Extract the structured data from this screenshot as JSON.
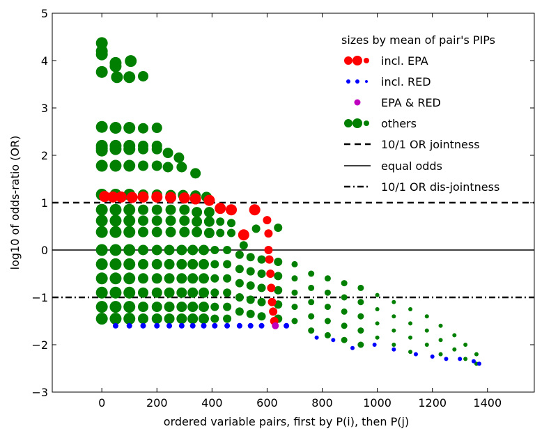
{
  "chart_data": {
    "type": "scatter",
    "xlabel": "ordered variable pairs, first by P(i), then P(j)",
    "ylabel": "log10 of odds-ratio (OR)",
    "xlim": [
      -180,
      1570
    ],
    "ylim": [
      -3,
      5
    ],
    "xticks": [
      0,
      200,
      400,
      600,
      800,
      1000,
      1200,
      1400
    ],
    "yticks": [
      -3,
      -2,
      -1,
      0,
      1,
      2,
      3,
      4,
      5
    ],
    "grid": false,
    "legend_position": "top-right",
    "legend_title": "sizes by mean of pair's PIPs",
    "colors": {
      "epa": "#ff0000",
      "red": "#0000ff",
      "both": "#bf00bf",
      "others": "#007f00"
    },
    "series": [
      {
        "name": "incl. EPA",
        "color": "#ff0000",
        "points": [
          [
            10,
            1.13
          ],
          [
            40,
            1.12
          ],
          [
            70,
            1.12
          ],
          [
            110,
            1.11
          ],
          [
            150,
            1.12
          ],
          [
            200,
            1.12
          ],
          [
            250,
            1.11
          ],
          [
            300,
            1.1
          ],
          [
            340,
            1.08
          ],
          [
            390,
            1.05
          ],
          [
            430,
            0.88
          ],
          [
            470,
            0.85
          ],
          [
            515,
            0.32
          ],
          [
            555,
            0.85
          ],
          [
            600,
            0.63
          ],
          [
            605,
            0.35
          ],
          [
            605,
            0.0
          ],
          [
            608,
            -0.2
          ],
          [
            612,
            -0.5
          ],
          [
            615,
            -0.8
          ],
          [
            618,
            -1.1
          ],
          [
            622,
            -1.3
          ],
          [
            626,
            -1.5
          ]
        ]
      },
      {
        "name": "incl. RED",
        "color": "#0000ff",
        "points": [
          [
            50,
            -1.6
          ],
          [
            100,
            -1.6
          ],
          [
            150,
            -1.6
          ],
          [
            200,
            -1.6
          ],
          [
            245,
            -1.6
          ],
          [
            290,
            -1.6
          ],
          [
            330,
            -1.6
          ],
          [
            370,
            -1.6
          ],
          [
            410,
            -1.6
          ],
          [
            455,
            -1.6
          ],
          [
            500,
            -1.6
          ],
          [
            540,
            -1.6
          ],
          [
            580,
            -1.6
          ],
          [
            670,
            -1.6
          ],
          [
            780,
            -1.85
          ],
          [
            840,
            -1.9
          ],
          [
            910,
            -2.07
          ],
          [
            990,
            -2.0
          ],
          [
            1060,
            -2.1
          ],
          [
            1140,
            -2.2
          ],
          [
            1200,
            -2.25
          ],
          [
            1250,
            -2.3
          ],
          [
            1300,
            -2.3
          ],
          [
            1350,
            -2.35
          ],
          [
            1370,
            -2.4
          ]
        ]
      },
      {
        "name": "EPA & RED",
        "color": "#bf00bf",
        "points": [
          [
            630,
            -1.6
          ]
        ]
      },
      {
        "name": "others",
        "color": "#007f00",
        "points": [
          [
            0,
            4.37
          ],
          [
            0,
            4.2
          ],
          [
            0,
            4.13
          ],
          [
            0,
            3.76
          ],
          [
            50,
            3.95
          ],
          [
            50,
            3.88
          ],
          [
            105,
            3.99
          ],
          [
            55,
            3.65
          ],
          [
            100,
            3.65
          ],
          [
            150,
            3.67
          ],
          [
            0,
            2.6
          ],
          [
            50,
            2.58
          ],
          [
            100,
            2.58
          ],
          [
            150,
            2.57
          ],
          [
            200,
            2.58
          ],
          [
            0,
            2.2
          ],
          [
            0,
            2.15
          ],
          [
            0,
            2.1
          ],
          [
            50,
            2.2
          ],
          [
            50,
            2.13
          ],
          [
            100,
            2.2
          ],
          [
            100,
            2.13
          ],
          [
            150,
            2.2
          ],
          [
            150,
            2.13
          ],
          [
            200,
            2.2
          ],
          [
            200,
            2.13
          ],
          [
            240,
            2.05
          ],
          [
            280,
            1.95
          ],
          [
            0,
            1.78
          ],
          [
            50,
            1.78
          ],
          [
            100,
            1.78
          ],
          [
            150,
            1.78
          ],
          [
            200,
            1.78
          ],
          [
            240,
            1.75
          ],
          [
            290,
            1.75
          ],
          [
            340,
            1.62
          ],
          [
            0,
            1.17
          ],
          [
            50,
            1.17
          ],
          [
            100,
            1.17
          ],
          [
            150,
            1.17
          ],
          [
            200,
            1.17
          ],
          [
            250,
            1.16
          ],
          [
            295,
            1.16
          ],
          [
            340,
            1.15
          ],
          [
            380,
            1.12
          ],
          [
            0,
            0.85
          ],
          [
            50,
            0.85
          ],
          [
            100,
            0.85
          ],
          [
            150,
            0.85
          ],
          [
            200,
            0.85
          ],
          [
            250,
            0.85
          ],
          [
            300,
            0.85
          ],
          [
            345,
            0.8
          ],
          [
            390,
            0.8
          ],
          [
            0,
            0.62
          ],
          [
            50,
            0.62
          ],
          [
            100,
            0.62
          ],
          [
            150,
            0.62
          ],
          [
            200,
            0.62
          ],
          [
            250,
            0.62
          ],
          [
            300,
            0.62
          ],
          [
            345,
            0.6
          ],
          [
            390,
            0.6
          ],
          [
            430,
            0.6
          ],
          [
            470,
            0.57
          ],
          [
            0,
            0.38
          ],
          [
            50,
            0.38
          ],
          [
            100,
            0.38
          ],
          [
            150,
            0.38
          ],
          [
            200,
            0.38
          ],
          [
            250,
            0.38
          ],
          [
            300,
            0.38
          ],
          [
            345,
            0.38
          ],
          [
            390,
            0.36
          ],
          [
            430,
            0.36
          ],
          [
            470,
            0.36
          ],
          [
            515,
            0.1
          ],
          [
            560,
            0.45
          ],
          [
            640,
            0.47
          ],
          [
            0,
            0.0
          ],
          [
            0,
            -0.3
          ],
          [
            0,
            -0.6
          ],
          [
            0,
            -0.9
          ],
          [
            0,
            -1.2
          ],
          [
            0,
            -1.45
          ],
          [
            50,
            0.0
          ],
          [
            50,
            -0.3
          ],
          [
            50,
            -0.6
          ],
          [
            50,
            -0.9
          ],
          [
            50,
            -1.2
          ],
          [
            50,
            -1.45
          ],
          [
            100,
            0.0
          ],
          [
            100,
            -0.3
          ],
          [
            100,
            -0.6
          ],
          [
            100,
            -0.9
          ],
          [
            100,
            -1.2
          ],
          [
            100,
            -1.45
          ],
          [
            150,
            0.0
          ],
          [
            150,
            -0.3
          ],
          [
            150,
            -0.6
          ],
          [
            150,
            -0.9
          ],
          [
            150,
            -1.2
          ],
          [
            150,
            -1.45
          ],
          [
            200,
            0.0
          ],
          [
            200,
            -0.3
          ],
          [
            200,
            -0.6
          ],
          [
            200,
            -0.9
          ],
          [
            200,
            -1.2
          ],
          [
            200,
            -1.45
          ],
          [
            245,
            0.0
          ],
          [
            245,
            -0.3
          ],
          [
            245,
            -0.6
          ],
          [
            245,
            -0.9
          ],
          [
            245,
            -1.2
          ],
          [
            245,
            -1.45
          ],
          [
            290,
            0.0
          ],
          [
            290,
            -0.3
          ],
          [
            290,
            -0.6
          ],
          [
            290,
            -0.9
          ],
          [
            290,
            -1.2
          ],
          [
            290,
            -1.45
          ],
          [
            330,
            0.0
          ],
          [
            330,
            -0.3
          ],
          [
            330,
            -0.6
          ],
          [
            330,
            -0.9
          ],
          [
            330,
            -1.2
          ],
          [
            330,
            -1.45
          ],
          [
            370,
            0.0
          ],
          [
            370,
            -0.3
          ],
          [
            370,
            -0.6
          ],
          [
            370,
            -0.9
          ],
          [
            370,
            -1.2
          ],
          [
            370,
            -1.45
          ],
          [
            410,
            0.0
          ],
          [
            410,
            -0.3
          ],
          [
            410,
            -0.6
          ],
          [
            410,
            -0.9
          ],
          [
            410,
            -1.2
          ],
          [
            410,
            -1.45
          ],
          [
            455,
            0.0
          ],
          [
            455,
            -0.3
          ],
          [
            455,
            -0.6
          ],
          [
            455,
            -0.9
          ],
          [
            455,
            -1.2
          ],
          [
            455,
            -1.45
          ],
          [
            500,
            -0.1
          ],
          [
            500,
            -0.4
          ],
          [
            500,
            -0.7
          ],
          [
            500,
            -1.0
          ],
          [
            500,
            -1.3
          ],
          [
            540,
            -0.15
          ],
          [
            540,
            -0.45
          ],
          [
            540,
            -0.75
          ],
          [
            540,
            -1.05
          ],
          [
            540,
            -1.35
          ],
          [
            580,
            -0.2
          ],
          [
            580,
            -0.5
          ],
          [
            580,
            -0.8
          ],
          [
            580,
            -1.1
          ],
          [
            580,
            -1.4
          ],
          [
            640,
            -0.25
          ],
          [
            640,
            -0.55
          ],
          [
            640,
            -0.85
          ],
          [
            640,
            -1.15
          ],
          [
            640,
            -1.45
          ],
          [
            700,
            -0.3
          ],
          [
            700,
            -0.6
          ],
          [
            700,
            -0.9
          ],
          [
            700,
            -1.2
          ],
          [
            700,
            -1.5
          ],
          [
            760,
            -0.5
          ],
          [
            760,
            -0.8
          ],
          [
            760,
            -1.1
          ],
          [
            760,
            -1.4
          ],
          [
            760,
            -1.7
          ],
          [
            820,
            -0.6
          ],
          [
            820,
            -0.9
          ],
          [
            820,
            -1.2
          ],
          [
            820,
            -1.5
          ],
          [
            820,
            -1.8
          ],
          [
            880,
            -0.7
          ],
          [
            880,
            -1.0
          ],
          [
            880,
            -1.3
          ],
          [
            880,
            -1.6
          ],
          [
            880,
            -1.9
          ],
          [
            940,
            -0.8
          ],
          [
            940,
            -1.1
          ],
          [
            940,
            -1.4
          ],
          [
            940,
            -1.7
          ],
          [
            940,
            -2.0
          ],
          [
            1000,
            -0.95
          ],
          [
            1000,
            -1.25
          ],
          [
            1000,
            -1.55
          ],
          [
            1000,
            -1.85
          ],
          [
            1060,
            -1.1
          ],
          [
            1060,
            -1.4
          ],
          [
            1060,
            -1.7
          ],
          [
            1060,
            -2.0
          ],
          [
            1120,
            -1.25
          ],
          [
            1120,
            -1.55
          ],
          [
            1120,
            -1.85
          ],
          [
            1120,
            -2.15
          ],
          [
            1180,
            -1.4
          ],
          [
            1180,
            -1.7
          ],
          [
            1180,
            -2.0
          ],
          [
            1230,
            -1.6
          ],
          [
            1230,
            -1.9
          ],
          [
            1230,
            -2.2
          ],
          [
            1280,
            -1.8
          ],
          [
            1280,
            -2.1
          ],
          [
            1320,
            -2.0
          ],
          [
            1320,
            -2.3
          ],
          [
            1360,
            -2.2
          ],
          [
            1360,
            -2.4
          ]
        ]
      }
    ],
    "legend": [
      {
        "label": "incl. EPA",
        "kind": "markers",
        "color": "#ff0000"
      },
      {
        "label": "incl. RED",
        "kind": "markers",
        "color": "#0000ff"
      },
      {
        "label": "EPA & RED",
        "kind": "marker",
        "color": "#bf00bf"
      },
      {
        "label": "others",
        "kind": "markers",
        "color": "#007f00"
      },
      {
        "label": "10/1 OR jointness",
        "kind": "dashed-line",
        "y": 1
      },
      {
        "label": "equal odds",
        "kind": "solid-line",
        "y": 0
      },
      {
        "label": "10/1 OR dis-jointness",
        "kind": "dashdot-line",
        "y": -1
      }
    ]
  }
}
